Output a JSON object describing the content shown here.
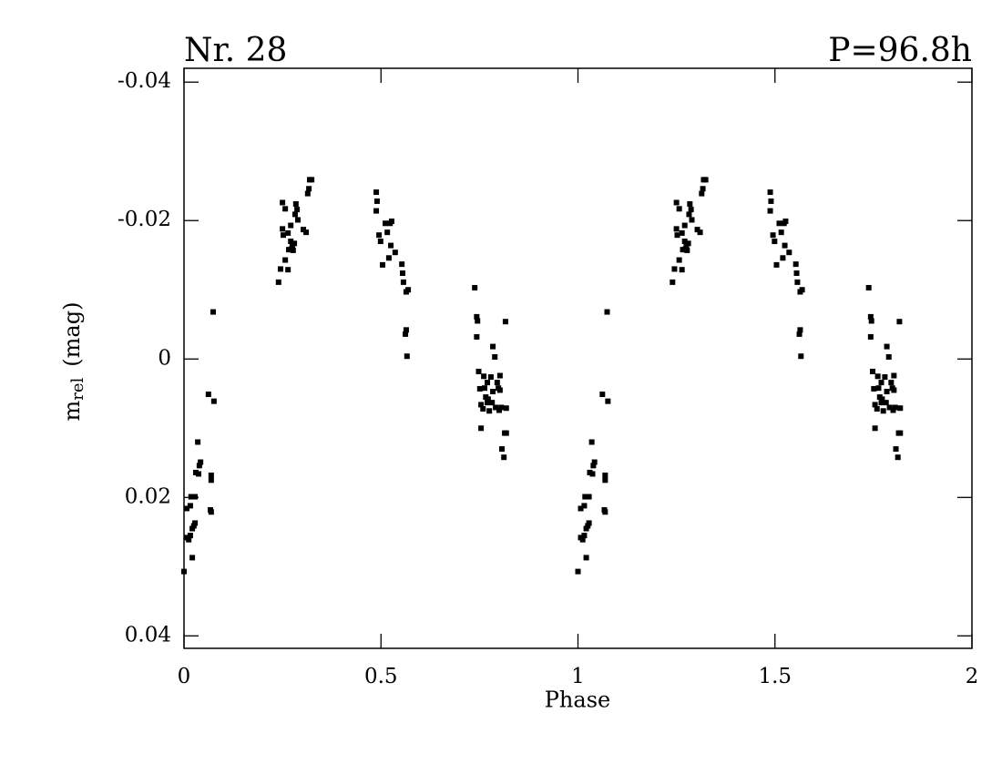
{
  "chart_data": {
    "type": "scatter",
    "title_left": "Nr. 28",
    "title_right": "P=96.8h",
    "x_label": "Phase",
    "y_label_main": "m",
    "y_label_sub": "rel",
    "y_label_unit": "(mag)",
    "color": "#000000",
    "xlim": [
      0,
      2
    ],
    "xticks": [
      0,
      0.5,
      1,
      1.5,
      2
    ],
    "ylim": [
      0.0418,
      -0.042
    ],
    "yticks": [
      -0.04,
      -0.02,
      0,
      0.02,
      0.04
    ],
    "x": [
      0,
      0.007,
      0.007,
      0.012,
      0.016,
      0.016,
      0.021,
      0.021,
      0.025,
      0.028,
      0.018,
      0.028,
      0.03,
      0.035,
      0.037,
      0.039,
      0.042,
      0.062,
      0.069,
      0.069,
      0.067,
      0.069,
      0.074,
      0.076,
      0.24,
      0.245,
      0.25,
      0.252,
      0.25,
      0.257,
      0.257,
      0.264,
      0.264,
      0.266,
      0.271,
      0.271,
      0.273,
      0.275,
      0.28,
      0.277,
      0.282,
      0.284,
      0.289,
      0.287,
      0.303,
      0.31,
      0.314,
      0.319,
      0.324,
      0.317,
      0.488,
      0.49,
      0.488,
      0.495,
      0.499,
      0.504,
      0.511,
      0.516,
      0.523,
      0.527,
      0.52,
      0.525,
      0.536,
      0.553,
      0.555,
      0.557,
      0.564,
      0.569,
      0.562,
      0.564,
      0.566,
      0.738,
      0.743,
      0.743,
      0.745,
      0.748,
      0.751,
      0.754,
      0.754,
      0.759,
      0.761,
      0.763,
      0.766,
      0.77,
      0.772,
      0.775,
      0.77,
      0.779,
      0.782,
      0.784,
      0.784,
      0.789,
      0.791,
      0.795,
      0.798,
      0.8,
      0.802,
      0.802,
      0.805,
      0.807,
      0.812,
      0.814,
      0.818,
      0.818,
      0.816,
      1,
      1.007,
      1.007,
      1.012,
      1.016,
      1.016,
      1.021,
      1.021,
      1.025,
      1.028,
      1.018,
      1.028,
      1.03,
      1.035,
      1.037,
      1.039,
      1.042,
      1.062,
      1.069,
      1.069,
      1.067,
      1.069,
      1.074,
      1.076,
      1.24,
      1.245,
      1.25,
      1.252,
      1.25,
      1.257,
      1.257,
      1.264,
      1.264,
      1.266,
      1.271,
      1.271,
      1.273,
      1.275,
      1.28,
      1.277,
      1.282,
      1.284,
      1.289,
      1.287,
      1.303,
      1.31,
      1.314,
      1.319,
      1.324,
      1.317,
      1.488,
      1.49,
      1.488,
      1.495,
      1.499,
      1.504,
      1.511,
      1.516,
      1.523,
      1.527,
      1.52,
      1.525,
      1.536,
      1.553,
      1.555,
      1.557,
      1.564,
      1.569,
      1.562,
      1.564,
      1.566,
      1.738,
      1.743,
      1.743,
      1.745,
      1.748,
      1.751,
      1.754,
      1.754,
      1.759,
      1.761,
      1.763,
      1.766,
      1.77,
      1.772,
      1.775,
      1.77,
      1.779,
      1.782,
      1.784,
      1.784,
      1.789,
      1.791,
      1.795,
      1.798,
      1.8,
      1.802,
      1.802,
      1.805,
      1.807,
      1.812,
      1.814,
      1.818,
      1.818,
      1.816
    ],
    "values": [
      0.0307,
      0.0216,
      0.0258,
      0.0261,
      0.0255,
      0.0212,
      0.0287,
      0.0245,
      0.0241,
      0.0237,
      0.0199,
      0.0199,
      0.0164,
      0.012,
      0.0166,
      0.0154,
      0.0149,
      0.0051,
      0.0175,
      0.0168,
      0.0218,
      0.0221,
      -0.0068,
      0.0061,
      -0.0111,
      -0.013,
      -0.0226,
      -0.0179,
      -0.0188,
      -0.0217,
      -0.0143,
      -0.0129,
      -0.0182,
      -0.0158,
      -0.0193,
      -0.017,
      -0.0159,
      -0.0164,
      -0.0167,
      -0.0157,
      -0.0209,
      -0.0224,
      -0.0201,
      -0.0216,
      -0.0187,
      -0.0183,
      -0.0239,
      -0.0259,
      -0.0259,
      -0.0246,
      -0.0241,
      -0.0228,
      -0.0214,
      -0.0179,
      -0.017,
      -0.0136,
      -0.0196,
      -0.0183,
      -0.0196,
      -0.0199,
      -0.0146,
      -0.0164,
      -0.0154,
      -0.0137,
      -0.0124,
      -0.0111,
      -0.0097,
      -0.01,
      -0.0036,
      -0.0042,
      -0.0004,
      -0.0103,
      -0.0061,
      -0.0032,
      -0.0055,
      0.0018,
      0.0043,
      0.01,
      0.0066,
      0.0072,
      0.0025,
      0.0042,
      0.0055,
      0.0063,
      0.0058,
      0.0075,
      0.0034,
      0.0026,
      0.0063,
      -0.0018,
      0.0047,
      -0.0003,
      0.007,
      0.0034,
      0.0042,
      0.0074,
      0.0045,
      0.0024,
      0.007,
      0.013,
      0.0142,
      0.0107,
      0.0071,
      0.0107,
      -0.0054,
      0.0307,
      0.0216,
      0.0258,
      0.0261,
      0.0255,
      0.0212,
      0.0287,
      0.0245,
      0.0241,
      0.0237,
      0.0199,
      0.0199,
      0.0164,
      0.012,
      0.0166,
      0.0154,
      0.0149,
      0.0051,
      0.0175,
      0.0168,
      0.0218,
      0.0221,
      -0.0068,
      0.0061,
      -0.0111,
      -0.013,
      -0.0226,
      -0.0179,
      -0.0188,
      -0.0217,
      -0.0143,
      -0.0129,
      -0.0182,
      -0.0158,
      -0.0193,
      -0.017,
      -0.0159,
      -0.0164,
      -0.0167,
      -0.0157,
      -0.0209,
      -0.0224,
      -0.0201,
      -0.0216,
      -0.0187,
      -0.0183,
      -0.0239,
      -0.0259,
      -0.0259,
      -0.0246,
      -0.0241,
      -0.0228,
      -0.0214,
      -0.0179,
      -0.017,
      -0.0136,
      -0.0196,
      -0.0183,
      -0.0196,
      -0.0199,
      -0.0146,
      -0.0164,
      -0.0154,
      -0.0137,
      -0.0124,
      -0.0111,
      -0.0097,
      -0.01,
      -0.0036,
      -0.0042,
      -0.0004,
      -0.0103,
      -0.0061,
      -0.0032,
      -0.0055,
      0.0018,
      0.0043,
      0.01,
      0.0066,
      0.0072,
      0.0025,
      0.0042,
      0.0055,
      0.0063,
      0.0058,
      0.0075,
      0.0034,
      0.0026,
      0.0063,
      -0.0018,
      0.0047,
      -0.0003,
      0.007,
      0.0034,
      0.0042,
      0.0074,
      0.0045,
      0.0024,
      0.007,
      0.013,
      0.0142,
      0.0107,
      0.0071,
      0.0107,
      -0.0054
    ]
  }
}
